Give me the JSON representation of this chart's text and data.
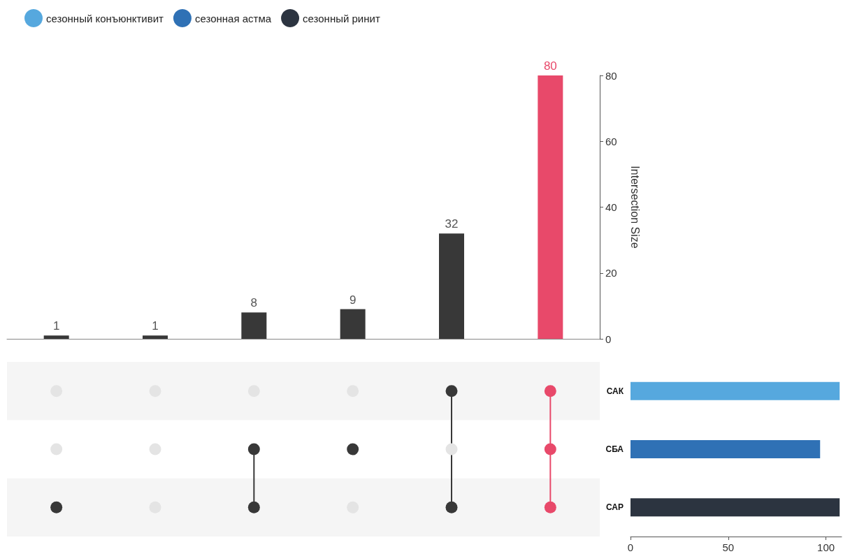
{
  "chart_data": [
    {
      "type": "bar",
      "categories": [
        null,
        null,
        null,
        null,
        null,
        null
      ],
      "values": [
        1,
        1,
        8,
        9,
        32,
        80
      ],
      "colors": [
        "#383838",
        "#383838",
        "#383838",
        "#383838",
        "#383838",
        "#e8496a"
      ],
      "ylim": [
        0,
        80
      ],
      "yticks": [
        0,
        20,
        40,
        60,
        80
      ],
      "ylabel": "Intersection Size",
      "data_labels": true,
      "tick_labels": "y"
    },
    {
      "type": "bar",
      "orientation": "horizontal",
      "stacked": true,
      "categories": [
        "САК",
        "СБА",
        "САР"
      ],
      "series": [
        {
          "name": "сезонный конъюнктивит",
          "color": "#56a8de",
          "values": [
            107,
            null,
            null
          ]
        },
        {
          "name": "сезонная астма",
          "color": "#2f71b5",
          "values": [
            null,
            97,
            null
          ]
        },
        {
          "name": "сезонный ринит",
          "color": "#2c3440",
          "values": [
            null,
            null,
            107
          ]
        }
      ],
      "xlim": [
        0,
        108
      ],
      "xticks": [
        0,
        50,
        100
      ],
      "legend": "top left"
    }
  ]
}
